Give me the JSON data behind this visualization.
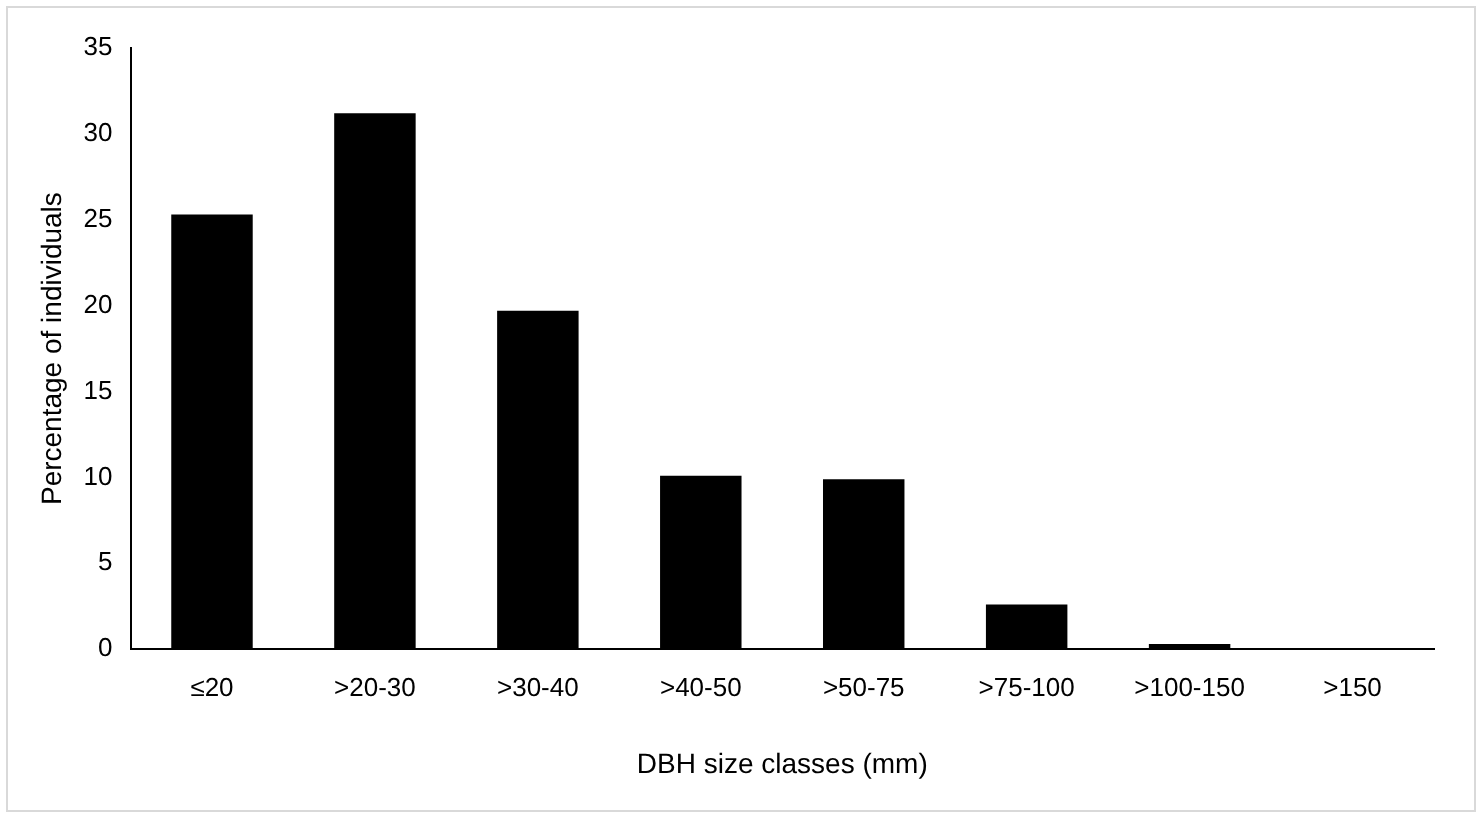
{
  "chart_data": {
    "type": "bar",
    "xlabel": "DBH size classes (mm)",
    "ylabel": "Percentage of individuals",
    "categories": [
      "≤20",
      ">20-30",
      ">30-40",
      ">40-50",
      ">50-75",
      ">75-100",
      ">100-150",
      ">150"
    ],
    "values": [
      25.3,
      31.2,
      19.7,
      10.1,
      9.9,
      2.6,
      0.3,
      0
    ],
    "color": "#000000",
    "ylim": [
      0,
      35
    ],
    "yticks": [
      0,
      5,
      10,
      15,
      20,
      25,
      30,
      35
    ],
    "grid": false,
    "legend": false
  }
}
